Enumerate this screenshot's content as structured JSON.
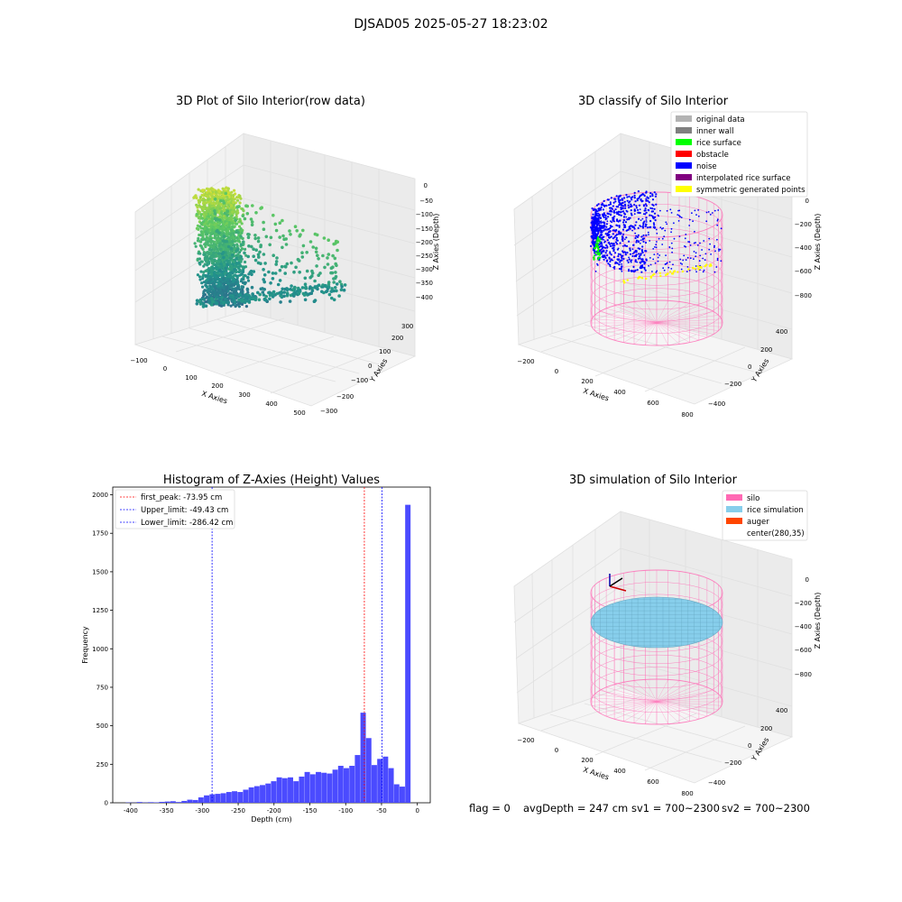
{
  "suptitle": "DJSAD05 2025-05-27 18:23:02",
  "chart_data": [
    {
      "type": "scatter3d",
      "title": "3D Plot of Silo Interior(row data)",
      "xlabel": "X Axies",
      "ylabel": "Y Axies",
      "zlabel": "Z Axies (Depth)",
      "x_ticks": [
        "−100",
        "0",
        "100",
        "200",
        "300",
        "400",
        "500"
      ],
      "y_ticks": [
        "−300",
        "−200",
        "−100",
        "0",
        "100",
        "200",
        "300"
      ],
      "z_ticks": [
        "0",
        "−50",
        "−100",
        "−150",
        "−200",
        "−250",
        "−300",
        "−350",
        "−400"
      ],
      "colormap": "viridis"
    },
    {
      "type": "scatter3d",
      "title": "3D classify of Silo Interior",
      "xlabel": "X Axies",
      "ylabel": "Y Axies",
      "zlabel": "Z Axies (Depth)",
      "x_ticks": [
        "−200",
        "0",
        "200",
        "400",
        "600",
        "800"
      ],
      "y_ticks": [
        "−400",
        "−200",
        "0",
        "200",
        "400"
      ],
      "z_ticks": [
        "0",
        "−200",
        "−400",
        "−600",
        "−800"
      ],
      "legend_position": "top-right",
      "legend": [
        {
          "label": "original data",
          "color": "#b3b3b3"
        },
        {
          "label": "inner wall",
          "color": "#808080"
        },
        {
          "label": "rice surface",
          "color": "#00ff00"
        },
        {
          "label": "obstacle",
          "color": "#ff0000"
        },
        {
          "label": "noise",
          "color": "#0000ff"
        },
        {
          "label": "interpolated rice surface",
          "color": "#800080"
        },
        {
          "label": "symmetric generated points",
          "color": "#ffff00"
        }
      ]
    },
    {
      "type": "bar",
      "title": "Histogram of Z-Axies (Height) Values",
      "xlabel": "Depth (cm)",
      "ylabel": "Frequency",
      "xlim": [
        -425,
        18
      ],
      "ylim": [
        0,
        2050
      ],
      "x_ticks": [
        -400,
        -350,
        -300,
        -250,
        -200,
        -150,
        -100,
        -50,
        0
      ],
      "y_ticks": [
        0,
        250,
        500,
        750,
        1000,
        1250,
        1500,
        1750,
        2000
      ],
      "bin_width": 7.8,
      "bar_color": "#4b4bff",
      "bin_left_edges": [
        -407,
        -399.2,
        -391.4,
        -383.6,
        -375.8,
        -368,
        -360.2,
        -352.4,
        -344.6,
        -336.8,
        -329,
        -321.2,
        -313.4,
        -305.6,
        -297.8,
        -290,
        -282.2,
        -274.4,
        -266.6,
        -258.8,
        -251,
        -243.2,
        -235.4,
        -227.6,
        -219.8,
        -212,
        -204.2,
        -196.4,
        -188.6,
        -180.8,
        -173,
        -165.2,
        -157.4,
        -149.6,
        -141.8,
        -134,
        -126.2,
        -118.4,
        -110.6,
        -102.8,
        -95,
        -87.2,
        -79.4,
        -71.6,
        -63.8,
        -56,
        -48.2,
        -40.4,
        -32.6,
        -24.8,
        -17,
        -9.2,
        -1.4
      ],
      "values": [
        2,
        1,
        5,
        2,
        4,
        3,
        6,
        8,
        10,
        5,
        12,
        20,
        18,
        35,
        48,
        55,
        58,
        62,
        70,
        75,
        70,
        85,
        100,
        108,
        115,
        125,
        140,
        165,
        160,
        165,
        140,
        170,
        200,
        185,
        200,
        195,
        190,
        215,
        240,
        225,
        240,
        310,
        585,
        420,
        245,
        285,
        300,
        225,
        120,
        105,
        1935,
        0,
        0
      ],
      "legend_position": "top-left",
      "lines": [
        {
          "label": "first_peak: -73.95 cm",
          "value": -73.95,
          "color": "#ff0000"
        },
        {
          "label": "Upper_limit: -49.43 cm",
          "value": -49.43,
          "color": "#0000ff"
        },
        {
          "label": "Lower_limit: -286.42 cm",
          "value": -286.42,
          "color": "#0000ff"
        }
      ]
    },
    {
      "type": "surface3d",
      "title": "3D simulation of Silo Interior",
      "xlabel": "X Axies",
      "ylabel": "Y Axies",
      "zlabel": "Z Axies (Depth)",
      "x_ticks": [
        "−200",
        "0",
        "200",
        "400",
        "600",
        "800"
      ],
      "y_ticks": [
        "−400",
        "−200",
        "0",
        "200",
        "400"
      ],
      "z_ticks": [
        "0",
        "−200",
        "−400",
        "−600",
        "−800"
      ],
      "legend_position": "top-right",
      "legend": [
        {
          "label": "silo",
          "color": "#ff69b4"
        },
        {
          "label": "rice simulation",
          "color": "#87ceeb"
        },
        {
          "label": "auger",
          "color": "#ff4500"
        },
        {
          "label": "center(280,35)",
          "color": ""
        }
      ]
    }
  ],
  "footer": {
    "flag": "flag = 0",
    "avg_depth": "avgDepth = 247 cm",
    "sv1": "sv1 = 700~2300",
    "sv2": "sv2 = 700~2300"
  }
}
